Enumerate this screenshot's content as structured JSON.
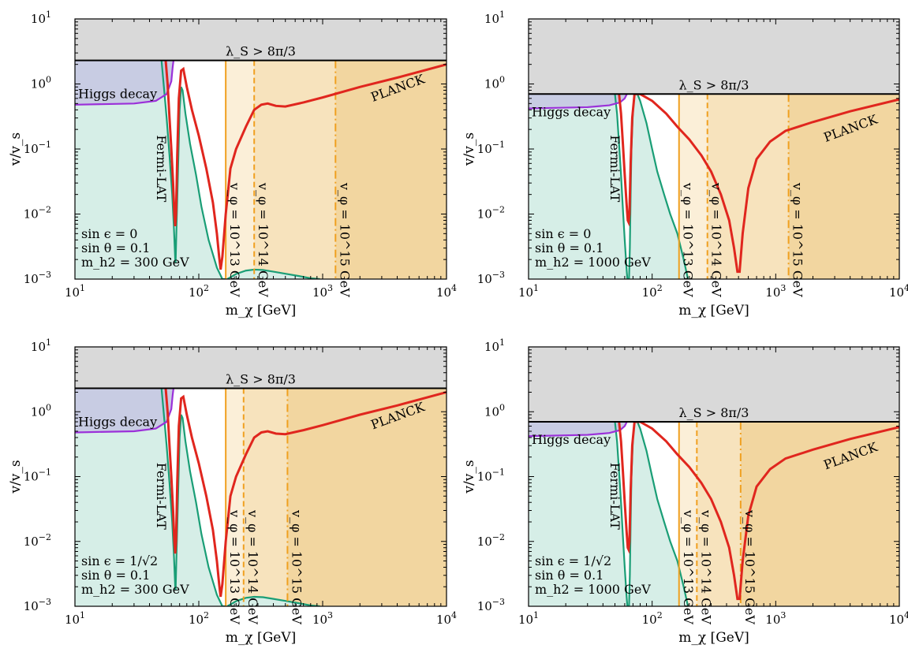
{
  "colors": {
    "excluded_gray": "#d9d9d9",
    "fermi_fill": "#d6eee7",
    "fermi_line": "#1a9e76",
    "higgs_fill": "#c8cce3",
    "higgs_line": "#9b30d9",
    "planck_line": "#e0261e",
    "band1": "#fbefd8",
    "band2": "#f7e3bd",
    "band3": "#f2d6a0",
    "vline": "#f0a020"
  },
  "chart_data": [
    {
      "type": "line",
      "xlabel": "m_χ [GeV]",
      "ylabel": "v/v_s",
      "xlim": [
        10,
        10000
      ],
      "ylim": [
        0.001,
        10
      ],
      "xscale": "log",
      "yscale": "log",
      "x_ticks": [
        "10^1",
        "10^2",
        "10^3",
        "10^4"
      ],
      "y_ticks": [
        "10^−3",
        "10^−2",
        "10^−1",
        "10^0",
        "10^1"
      ],
      "perturbativity": {
        "label": "λ_S > 8π/3",
        "y_min": 2.3
      },
      "annotations": [
        "sin ϵ = 0",
        "sin θ = 0.1",
        "m_h2 = 300 GeV"
      ],
      "region_labels": {
        "higgs": "Higgs decay",
        "fermi": "Fermi-LAT",
        "planck": "PLANCK"
      },
      "v_phi_lines": [
        {
          "x": 165,
          "label": "v_φ = 10^13 GeV"
        },
        {
          "x": 280,
          "label": "v_φ = 10^14 GeV"
        },
        {
          "x": 1270,
          "label": "v_φ = 10^15 GeV"
        }
      ],
      "higgs_decay": {
        "x": [
          10,
          30,
          45,
          55,
          60,
          61.5,
          62.5
        ],
        "y": [
          0.48,
          0.5,
          0.55,
          0.7,
          1.1,
          1.8,
          2.3
        ]
      },
      "fermi_left": {
        "x": [
          50,
          52,
          55,
          58,
          61,
          63,
          64.5,
          65,
          66,
          68,
          70,
          72,
          74,
          78,
          85,
          95,
          105,
          120,
          140,
          155,
          163
        ],
        "y": [
          2.3,
          1.0,
          0.3,
          0.08,
          0.02,
          0.006,
          0.002,
          0.0018,
          0.006,
          0.05,
          0.4,
          0.9,
          0.8,
          0.35,
          0.12,
          0.04,
          0.013,
          0.004,
          0.0015,
          0.001,
          0.001
        ]
      },
      "fermi_right": {
        "x": [
          170,
          200,
          240,
          280,
          330,
          400,
          500,
          650,
          800,
          950
        ],
        "y": [
          0.001,
          0.0012,
          0.00135,
          0.0014,
          0.00138,
          0.0013,
          0.00121,
          0.00111,
          0.00103,
          0.001
        ]
      },
      "planck": {
        "x": [
          54,
          56,
          58,
          60,
          62,
          63.5,
          64.5,
          65.5,
          67,
          69,
          72,
          75,
          80,
          88,
          100,
          115,
          130,
          140,
          146,
          150,
          155,
          165,
          180,
          200,
          240,
          280,
          320,
          360,
          420,
          500,
          700,
          1000,
          2000,
          4000,
          10000
        ],
        "y": [
          2.3,
          1.0,
          0.3,
          0.1,
          0.03,
          0.01,
          0.0065,
          0.01,
          0.08,
          0.6,
          1.6,
          1.7,
          0.9,
          0.4,
          0.16,
          0.05,
          0.015,
          0.005,
          0.0022,
          0.0014,
          0.0022,
          0.01,
          0.05,
          0.1,
          0.22,
          0.4,
          0.48,
          0.5,
          0.46,
          0.45,
          0.52,
          0.62,
          0.9,
          1.25,
          2.0
        ]
      }
    },
    {
      "type": "line",
      "xlabel": "m_χ [GeV]",
      "ylabel": "v/v_s",
      "xlim": [
        10,
        10000
      ],
      "ylim": [
        0.001,
        10
      ],
      "xscale": "log",
      "yscale": "log",
      "x_ticks": [
        "10^1",
        "10^2",
        "10^3",
        "10^4"
      ],
      "y_ticks": [
        "10^−3",
        "10^−2",
        "10^−1",
        "10^0",
        "10^1"
      ],
      "perturbativity": {
        "label": "λ_S > 8π/3",
        "y_min": 0.7
      },
      "annotations": [
        "sin ϵ = 0",
        "sin θ = 0.1",
        "m_h2 = 1000 GeV"
      ],
      "region_labels": {
        "higgs": "Higgs decay",
        "fermi": "Fermi-LAT",
        "planck": "PLANCK"
      },
      "v_phi_lines": [
        {
          "x": 165,
          "label": "v_φ = 10^13 GeV"
        },
        {
          "x": 280,
          "label": "v_φ = 10^14 GeV"
        },
        {
          "x": 1270,
          "label": "v_φ = 10^15 GeV"
        }
      ],
      "higgs_decay": {
        "x": [
          10,
          30,
          45,
          55,
          60,
          61.5,
          62.5
        ],
        "y": [
          0.42,
          0.44,
          0.47,
          0.52,
          0.6,
          0.66,
          0.7
        ]
      },
      "fermi_left": {
        "x": [
          50,
          52,
          54,
          56,
          58,
          60,
          62,
          63,
          64,
          65,
          66,
          67,
          68,
          70,
          72,
          74,
          76,
          80,
          90,
          100,
          110,
          125,
          140,
          160,
          180,
          195
        ],
        "y": [
          0.7,
          0.35,
          0.12,
          0.04,
          0.012,
          0.004,
          0.0015,
          0.001,
          0.001,
          0.001,
          0.003,
          0.02,
          0.1,
          0.4,
          0.7,
          0.7,
          0.7,
          0.55,
          0.25,
          0.1,
          0.045,
          0.02,
          0.01,
          0.005,
          0.002,
          0.001
        ]
      },
      "fermi_right": null,
      "planck": {
        "x": [
          54,
          56,
          58,
          60,
          62,
          63.5,
          64.5,
          65.5,
          67,
          69,
          72,
          80,
          100,
          130,
          160,
          200,
          250,
          300,
          360,
          420,
          460,
          490,
          510,
          540,
          600,
          700,
          900,
          1200,
          2000,
          4000,
          10000
        ],
        "y": [
          0.7,
          0.35,
          0.12,
          0.04,
          0.015,
          0.008,
          0.0075,
          0.01,
          0.06,
          0.3,
          0.7,
          0.7,
          0.55,
          0.35,
          0.22,
          0.14,
          0.08,
          0.045,
          0.02,
          0.008,
          0.003,
          0.0013,
          0.0013,
          0.005,
          0.025,
          0.07,
          0.13,
          0.19,
          0.26,
          0.38,
          0.58
        ]
      }
    },
    {
      "type": "line",
      "xlabel": "m_χ [GeV]",
      "ylabel": "v/v_s",
      "xlim": [
        10,
        10000
      ],
      "ylim": [
        0.001,
        10
      ],
      "xscale": "log",
      "yscale": "log",
      "x_ticks": [
        "10^1",
        "10^2",
        "10^3",
        "10^4"
      ],
      "y_ticks": [
        "10^−3",
        "10^−2",
        "10^−1",
        "10^0",
        "10^1"
      ],
      "perturbativity": {
        "label": "λ_S > 8π/3",
        "y_min": 2.3
      },
      "annotations": [
        "sin ϵ = 1/√2",
        "sin θ = 0.1",
        "m_h2 = 300 GeV"
      ],
      "region_labels": {
        "higgs": "Higgs decay",
        "fermi": "Fermi-LAT",
        "planck": "PLANCK"
      },
      "v_phi_lines": [
        {
          "x": 165,
          "label": "v_φ = 10^13 GeV"
        },
        {
          "x": 230,
          "label": "v_φ = 10^14 GeV"
        },
        {
          "x": 520,
          "label": "v_φ = 10^15 GeV"
        }
      ],
      "higgs_decay": {
        "x": [
          10,
          30,
          45,
          55,
          60,
          61.5,
          62.5
        ],
        "y": [
          0.48,
          0.5,
          0.55,
          0.7,
          1.1,
          1.8,
          2.3
        ]
      },
      "fermi_left": {
        "x": [
          50,
          52,
          55,
          58,
          61,
          63,
          64.5,
          65,
          66,
          68,
          70,
          72,
          74,
          78,
          85,
          95,
          105,
          120,
          140,
          155,
          163
        ],
        "y": [
          2.3,
          1.0,
          0.3,
          0.08,
          0.02,
          0.006,
          0.002,
          0.0018,
          0.006,
          0.05,
          0.4,
          0.9,
          0.8,
          0.35,
          0.12,
          0.04,
          0.013,
          0.004,
          0.0015,
          0.001,
          0.001
        ]
      },
      "fermi_right": {
        "x": [
          170,
          200,
          240,
          280,
          330,
          400,
          500,
          650,
          800,
          950
        ],
        "y": [
          0.001,
          0.0012,
          0.00135,
          0.0014,
          0.00138,
          0.0013,
          0.00121,
          0.00111,
          0.00103,
          0.001
        ]
      },
      "planck": {
        "x": [
          54,
          56,
          58,
          60,
          62,
          63.5,
          64.5,
          65.5,
          67,
          69,
          72,
          75,
          80,
          88,
          100,
          115,
          130,
          140,
          146,
          150,
          155,
          165,
          180,
          200,
          240,
          280,
          320,
          360,
          420,
          500,
          700,
          1000,
          2000,
          4000,
          10000
        ],
        "y": [
          2.3,
          1.0,
          0.3,
          0.1,
          0.03,
          0.01,
          0.0065,
          0.01,
          0.08,
          0.6,
          1.6,
          1.7,
          0.9,
          0.4,
          0.16,
          0.05,
          0.015,
          0.005,
          0.0022,
          0.0014,
          0.0022,
          0.01,
          0.05,
          0.1,
          0.22,
          0.4,
          0.48,
          0.5,
          0.46,
          0.45,
          0.52,
          0.62,
          0.9,
          1.25,
          2.0
        ]
      }
    },
    {
      "type": "line",
      "xlabel": "m_χ [GeV]",
      "ylabel": "v/v_s",
      "xlim": [
        10,
        10000
      ],
      "ylim": [
        0.001,
        10
      ],
      "xscale": "log",
      "yscale": "log",
      "x_ticks": [
        "10^1",
        "10^2",
        "10^3",
        "10^4"
      ],
      "y_ticks": [
        "10^−3",
        "10^−2",
        "10^−1",
        "10^0",
        "10^1"
      ],
      "perturbativity": {
        "label": "λ_S > 8π/3",
        "y_min": 0.7
      },
      "annotations": [
        "sin ϵ = 1/√2",
        "sin θ = 0.1",
        "m_h2 = 1000 GeV"
      ],
      "region_labels": {
        "higgs": "Higgs decay",
        "fermi": "Fermi-LAT",
        "planck": "PLANCK"
      },
      "v_phi_lines": [
        {
          "x": 165,
          "label": "v_φ = 10^13 GeV"
        },
        {
          "x": 230,
          "label": "v_φ = 10^14 GeV"
        },
        {
          "x": 520,
          "label": "v_φ = 10^15 GeV"
        }
      ],
      "higgs_decay": {
        "x": [
          10,
          30,
          45,
          55,
          60,
          61.5,
          62.5
        ],
        "y": [
          0.42,
          0.44,
          0.47,
          0.52,
          0.6,
          0.66,
          0.7
        ]
      },
      "fermi_left": {
        "x": [
          50,
          52,
          54,
          56,
          58,
          60,
          62,
          63,
          64,
          65,
          66,
          67,
          68,
          70,
          72,
          74,
          76,
          80,
          90,
          100,
          110,
          125,
          140,
          160,
          180,
          195
        ],
        "y": [
          0.7,
          0.35,
          0.12,
          0.04,
          0.012,
          0.004,
          0.0015,
          0.001,
          0.001,
          0.001,
          0.003,
          0.02,
          0.1,
          0.4,
          0.7,
          0.7,
          0.7,
          0.55,
          0.25,
          0.1,
          0.045,
          0.02,
          0.01,
          0.005,
          0.002,
          0.001
        ]
      },
      "fermi_right": null,
      "planck": {
        "x": [
          54,
          56,
          58,
          60,
          62,
          63.5,
          64.5,
          65.5,
          67,
          69,
          72,
          80,
          100,
          130,
          160,
          200,
          250,
          300,
          360,
          420,
          460,
          490,
          510,
          540,
          600,
          700,
          900,
          1200,
          2000,
          4000,
          10000
        ],
        "y": [
          0.7,
          0.35,
          0.12,
          0.04,
          0.015,
          0.008,
          0.0075,
          0.01,
          0.06,
          0.3,
          0.7,
          0.7,
          0.55,
          0.35,
          0.22,
          0.14,
          0.08,
          0.045,
          0.02,
          0.008,
          0.003,
          0.0013,
          0.0013,
          0.005,
          0.025,
          0.07,
          0.13,
          0.19,
          0.26,
          0.38,
          0.58
        ]
      }
    }
  ]
}
